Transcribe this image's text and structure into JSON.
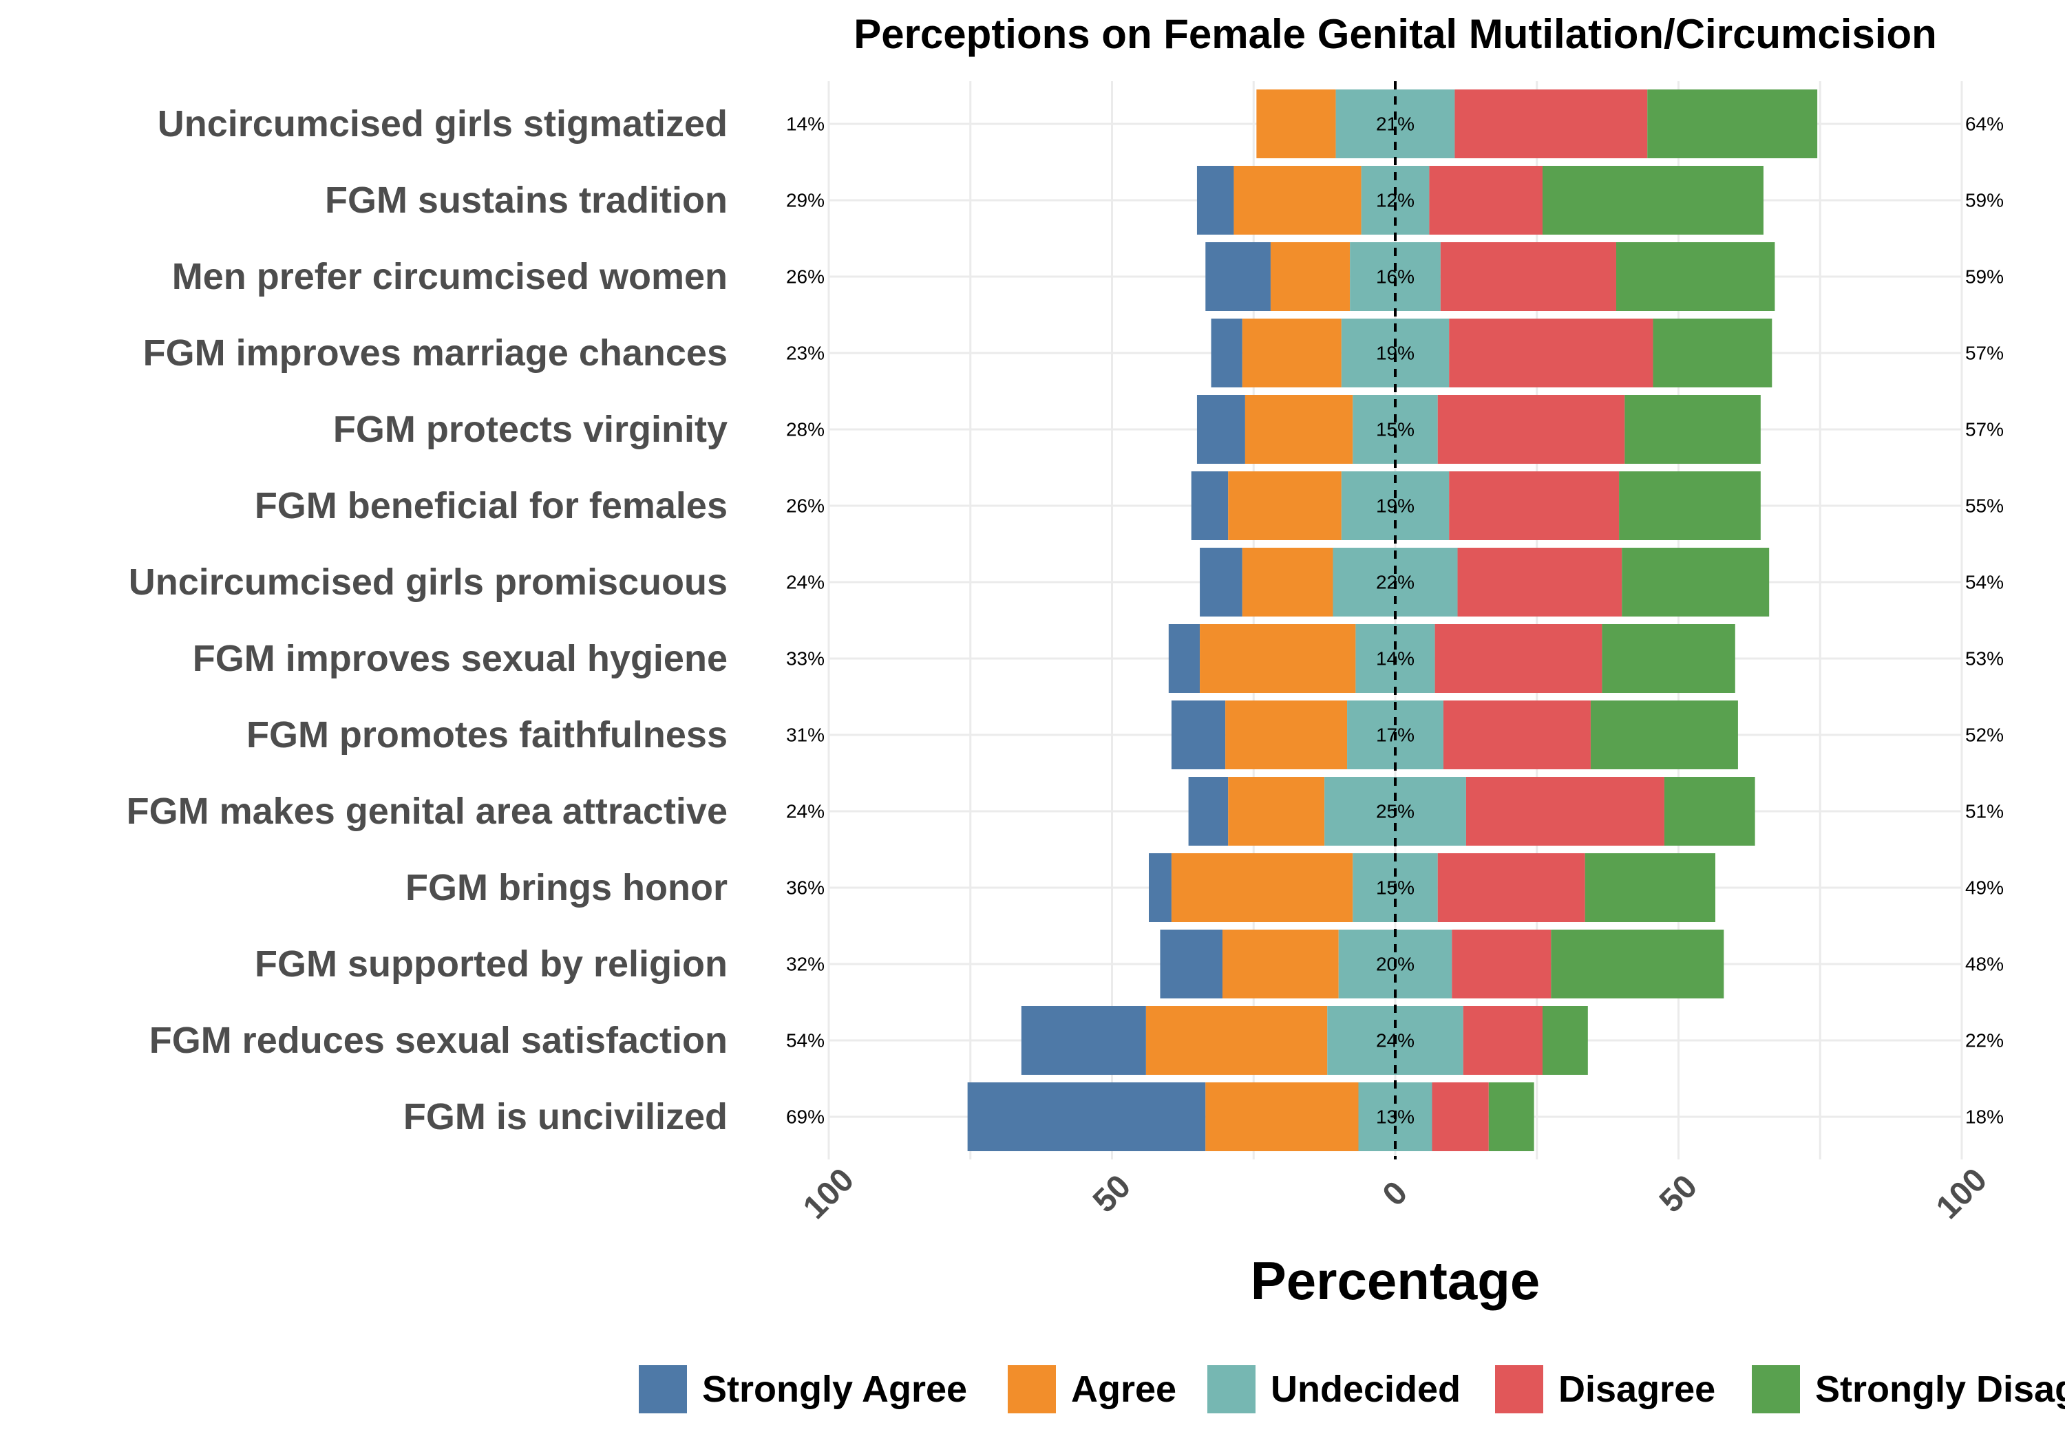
{
  "chart_data": {
    "type": "bar",
    "orientation": "horizontal",
    "layout": "diverging-stacked",
    "title": "Perceptions on Female Genital Mutilation/Circumcision",
    "xlabel": "Percentage",
    "xlim": [
      -100,
      100
    ],
    "x_ticks": [
      -100,
      -50,
      0,
      50,
      100
    ],
    "x_tick_labels": [
      "100",
      "50",
      "0",
      "50",
      "100"
    ],
    "grid": true,
    "legend_position": "bottom",
    "categories": [
      "Uncircumcised girls stigmatized",
      "FGM sustains tradition",
      "Men prefer circumcised women",
      "FGM improves marriage chances",
      "FGM protects virginity",
      "FGM beneficial for females",
      "Uncircumcised girls promiscuous",
      "FGM improves sexual hygiene",
      "FGM promotes faithfulness",
      "FGM makes genital area attractive",
      "FGM brings honor",
      "FGM supported by religion",
      "FGM reduces sexual satisfaction",
      "FGM is uncivilized"
    ],
    "series": [
      {
        "name": "Strongly Agree",
        "color": "#4e79a7",
        "values": [
          0,
          6.5,
          11.5,
          5.5,
          8.5,
          6.5,
          7.5,
          5.5,
          9.5,
          7,
          4,
          11,
          22,
          42
        ]
      },
      {
        "name": "Agree",
        "color": "#f28e2b",
        "values": [
          14,
          22.5,
          14,
          17.5,
          19,
          20,
          16,
          27.5,
          21.5,
          17,
          32,
          20.5,
          32,
          27
        ]
      },
      {
        "name": "Undecided",
        "color": "#76b7b2",
        "values": [
          21,
          12,
          16,
          19,
          15,
          19,
          22,
          14,
          17,
          25,
          15,
          20,
          24,
          13
        ]
      },
      {
        "name": "Disagree",
        "color": "#e15759",
        "values": [
          34,
          20,
          31,
          36,
          33,
          30,
          29,
          29.5,
          26,
          35,
          26,
          17.5,
          14,
          10
        ]
      },
      {
        "name": "Strongly Disagree",
        "color": "#59a14f",
        "values": [
          30,
          39,
          28,
          21,
          24,
          25,
          26,
          23.5,
          26,
          16,
          23,
          30.5,
          8,
          8
        ]
      }
    ],
    "labels_left": [
      "14%",
      "29%",
      "26%",
      "23%",
      "28%",
      "26%",
      "24%",
      "33%",
      "31%",
      "24%",
      "36%",
      "32%",
      "54%",
      "69%"
    ],
    "labels_center": [
      "21%",
      "12%",
      "16%",
      "19%",
      "15%",
      "19%",
      "22%",
      "14%",
      "17%",
      "25%",
      "15%",
      "20%",
      "24%",
      "13%"
    ],
    "labels_right": [
      "64%",
      "59%",
      "59%",
      "57%",
      "57%",
      "55%",
      "54%",
      "53%",
      "52%",
      "51%",
      "49%",
      "48%",
      "22%",
      "18%"
    ]
  }
}
